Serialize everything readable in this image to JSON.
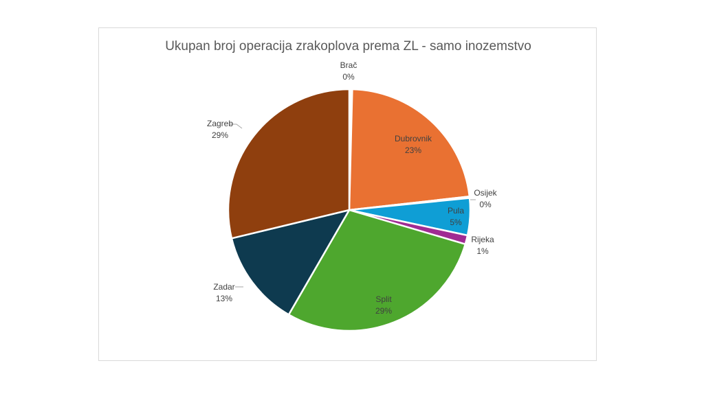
{
  "chart_data": {
    "type": "pie",
    "title": "Ukupan broj operacija zrakoplova prema ZL - samo inozemstvo",
    "slices": [
      {
        "label": "Brač",
        "value": 0.4,
        "value_label": "0%",
        "color": "#ffffff"
      },
      {
        "label": "Dubrovnik",
        "value": 23,
        "value_label": "23%",
        "color": "#E97132"
      },
      {
        "label": "Osijek",
        "value": 0.2,
        "value_label": "0%",
        "color": "#196B24"
      },
      {
        "label": "Pula",
        "value": 5,
        "value_label": "5%",
        "color": "#0F9ED5"
      },
      {
        "label": "Rijeka",
        "value": 1.2,
        "value_label": "1%",
        "color": "#A02B93"
      },
      {
        "label": "Split",
        "value": 29,
        "value_label": "29%",
        "color": "#4EA72E"
      },
      {
        "label": "Zadar",
        "value": 13,
        "value_label": "13%",
        "color": "#0E3A4F"
      },
      {
        "label": "Zagreb",
        "value": 29,
        "value_label": "29%",
        "color": "#8F3F0E"
      }
    ],
    "legend": "none",
    "data_labels": "category-and-percent"
  }
}
